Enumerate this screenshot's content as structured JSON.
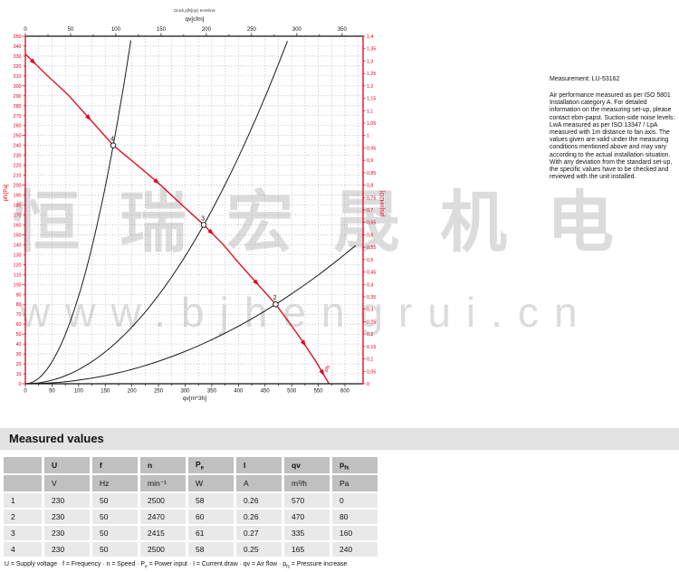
{
  "watermark": {
    "line1": "恒瑞宏晟机电",
    "line2": "www.bjhengrui.cn"
  },
  "measurement": {
    "title": "Measurement: LU-53162",
    "body": "Air performance measured as per ISO 5801 Installation category A. For detailed information on the measuring set-up, please contact ebm-papst. Suction-side noise levels: LwA measured as per ISO 13347 / LpA measured with 1m distance to fan axis. The values given are valid under the measuring conditions mentioned above and may vary according to the actual installation situation. With any deviation from the standard set-up, the specific values have to be checked and reviewed with the unit installed."
  },
  "chart": {
    "small_title": "Druck p[fs](qv) Kennlinie",
    "accent_red": "#e2001a",
    "axis_black": "#111111",
    "grid_gray": "#999999"
  },
  "chart_data": {
    "type": "line",
    "xlabel": "qv[m^3h]",
    "xlabel_top": "qv[cfm]",
    "ylabel_left": "pfs[Pa]",
    "ylabel_right": "pfs[inH2O]",
    "xlim": [
      0,
      634
    ],
    "x_ticks": [
      0,
      50,
      100,
      150,
      200,
      250,
      300,
      350,
      400,
      450,
      500,
      550,
      600
    ],
    "top_axis_ticks_cfm": [
      0,
      50,
      100,
      150,
      200,
      250,
      300,
      350
    ],
    "ylim_left": [
      0,
      350
    ],
    "y_step_left": 10,
    "ylim_right": [
      0,
      1.4
    ],
    "right_axis_labels": [
      "1,4",
      "1,35",
      "1,3",
      "1,25",
      "1,2",
      "1,15",
      "1,1",
      "1,05",
      "1",
      "0,95",
      "0,9",
      "0,85",
      "0,8",
      "0,75",
      "0,7",
      "0,65",
      "0,6",
      "0,55",
      "0,5",
      "0,45",
      "0,4",
      "0,35",
      "0,3",
      "0,25",
      "0,2",
      "0,15",
      "0,1",
      "0,05",
      "0"
    ],
    "grid": "dotted",
    "series": [
      {
        "name": "fan curve pfs(qv)",
        "color": "#e2001a",
        "points": [
          [
            0,
            332
          ],
          [
            40,
            311
          ],
          [
            80,
            291
          ],
          [
            122,
            266
          ],
          [
            165,
            240
          ],
          [
            208,
            221
          ],
          [
            250,
            202
          ],
          [
            292,
            181
          ],
          [
            335,
            160
          ],
          [
            370,
            141
          ],
          [
            400,
            122
          ],
          [
            435,
            101
          ],
          [
            470,
            80
          ],
          [
            495,
            62
          ],
          [
            520,
            43
          ],
          [
            546,
            22
          ],
          [
            570,
            0
          ]
        ]
      },
      {
        "name": "system curve through point 4",
        "color": "#1a1a1a",
        "parabola_through": [
          165,
          240
        ],
        "q_end": 198
      },
      {
        "name": "system curve through point 3",
        "color": "#1a1a1a",
        "parabola_through": [
          335,
          160
        ],
        "q_end": 492
      },
      {
        "name": "system curve through point 2",
        "color": "#1a1a1a",
        "parabola_through": [
          470,
          80
        ],
        "q_end": 620
      }
    ],
    "measured_points": [
      {
        "label": "4",
        "qv": 165,
        "pfs": 240
      },
      {
        "label": "3",
        "qv": 335,
        "pfs": 160
      },
      {
        "label": "2",
        "qv": 470,
        "pfs": 80
      },
      {
        "label": "1",
        "qv": 570,
        "pfs": 0
      }
    ],
    "marker_positions_qv": [
      15,
      119,
      247,
      349,
      434,
      523,
      558
    ],
    "curve_end_label": "pfs"
  },
  "table": {
    "section_title": "Measured values",
    "columns": [
      {
        "base": ""
      },
      {
        "base": "U"
      },
      {
        "base": "f"
      },
      {
        "base": "n"
      },
      {
        "base": "P",
        "sub": "e"
      },
      {
        "base": "I"
      },
      {
        "base": "qv"
      },
      {
        "base": "p",
        "sub": "fs"
      }
    ],
    "units": [
      "",
      "V",
      "Hz",
      "min⁻¹",
      "W",
      "A",
      "m³/h",
      "Pa"
    ],
    "rows": [
      [
        "1",
        "230",
        "50",
        "2500",
        "58",
        "0.26",
        "570",
        "0"
      ],
      [
        "2",
        "230",
        "50",
        "2470",
        "60",
        "0.26",
        "470",
        "80"
      ],
      [
        "3",
        "230",
        "50",
        "2415",
        "61",
        "0.27",
        "335",
        "160"
      ],
      [
        "4",
        "230",
        "50",
        "2500",
        "58",
        "0.25",
        "165",
        "240"
      ]
    ]
  },
  "footer_legend": [
    {
      "sym": "U",
      "desc": "Supply voltage"
    },
    {
      "sym": "f",
      "desc": "Frequency"
    },
    {
      "sym": "n",
      "desc": "Speed"
    },
    {
      "sym": "P",
      "sub": "e",
      "desc": "Power input"
    },
    {
      "sym": "I",
      "desc": "Current draw"
    },
    {
      "sym": "qv",
      "desc": "Air flow"
    },
    {
      "sym": "p",
      "sub": "fs",
      "desc": "Pressure increase"
    }
  ]
}
